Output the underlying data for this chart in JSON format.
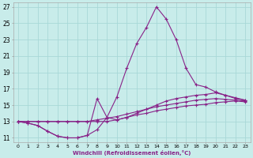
{
  "xlabel": "Windchill (Refroidissement éolien,°C)",
  "ylabel": "",
  "bg_color": "#c8ecea",
  "grid_color": "#a8d8d8",
  "line_color": "#882288",
  "x_all": [
    0,
    1,
    2,
    3,
    4,
    5,
    6,
    7,
    8,
    9,
    10,
    11,
    12,
    13,
    14,
    15,
    16,
    17,
    18,
    19,
    20,
    21,
    22,
    23
  ],
  "line_main": [
    13.0,
    12.8,
    12.5,
    11.8,
    11.2,
    11.0,
    11.0,
    11.3,
    12.0,
    13.5,
    16.0,
    19.5,
    22.5,
    24.5,
    27.0,
    25.5,
    23.0,
    19.5,
    17.5,
    17.2,
    16.6,
    16.2,
    15.8,
    15.6
  ],
  "line_bump": [
    13.0,
    12.8,
    12.5,
    11.8,
    11.2,
    11.0,
    11.0,
    11.3,
    15.8,
    13.5,
    13.2,
    13.5,
    14.0,
    14.5,
    15.0,
    15.5,
    15.8,
    16.0,
    16.2,
    16.3,
    16.5,
    16.2,
    15.9,
    15.6
  ],
  "line_flat1": [
    13.0,
    13.0,
    13.0,
    13.0,
    13.0,
    13.0,
    13.0,
    13.0,
    13.2,
    13.4,
    13.6,
    13.9,
    14.2,
    14.5,
    14.8,
    15.0,
    15.2,
    15.4,
    15.6,
    15.7,
    15.8,
    15.7,
    15.6,
    15.5
  ],
  "line_flat2": [
    13.0,
    13.0,
    13.0,
    13.0,
    13.0,
    13.0,
    13.0,
    13.0,
    13.0,
    13.0,
    13.2,
    13.5,
    13.8,
    14.0,
    14.3,
    14.5,
    14.7,
    14.9,
    15.0,
    15.1,
    15.3,
    15.4,
    15.5,
    15.4
  ],
  "ylim": [
    10.5,
    27.5
  ],
  "xlim": [
    -0.5,
    23.5
  ],
  "yticks": [
    11,
    13,
    15,
    17,
    19,
    21,
    23,
    25,
    27
  ],
  "xticks": [
    0,
    1,
    2,
    3,
    4,
    5,
    6,
    7,
    8,
    9,
    10,
    11,
    12,
    13,
    14,
    15,
    16,
    17,
    18,
    19,
    20,
    21,
    22,
    23
  ],
  "figsize": [
    3.2,
    2.0
  ],
  "dpi": 100
}
